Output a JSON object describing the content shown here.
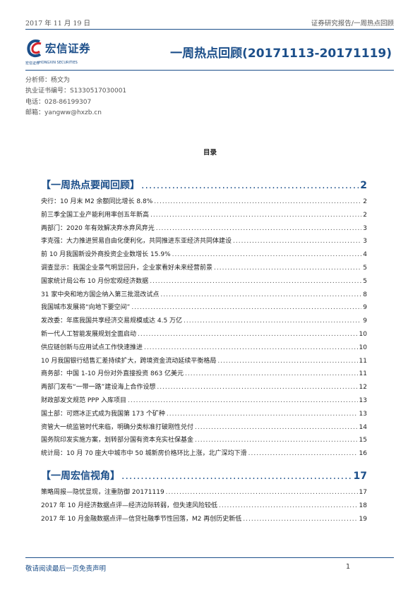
{
  "header": {
    "date": "2017 年 11 月 19 日",
    "report_type": "证券研究报告/一周热点回顾"
  },
  "logo": {
    "company_cn": "宏信证券",
    "company_en_prefix": "宏信证券",
    "company_en": "HONGXIN SECURITIES"
  },
  "title": "一周热点回顾(20171113-20171119)",
  "author": {
    "analyst": "分析师：杨文为",
    "license": "执业证书编号：S1330517030001",
    "phone": "电话：028-86199307",
    "email": "邮箱：yangww@hxzb.cn"
  },
  "toc_heading": "目录",
  "sections": [
    {
      "title": "【一周热点要闻回顾】",
      "page": "2"
    },
    {
      "title": "【一周宏信视角】",
      "page": "17"
    }
  ],
  "entries1": [
    {
      "title": "央行：10 月末 M2 余额同比增长 8.8%",
      "page": "2"
    },
    {
      "title": "前三季全国工业产能利用率创五年新高",
      "page": "2"
    },
    {
      "title": "两部门：2020 年有效解决弃水弃风弃光",
      "page": "3"
    },
    {
      "title": "李克强：大力推进贸易自由化便利化，共同推进东亚经济共同体建设",
      "page": "3"
    },
    {
      "title": "前 10 月我国新设外商投资企业数增长 15.9%",
      "page": "4"
    },
    {
      "title": "调查显示：我国企业景气明显回升，企业家看好未来经营前景",
      "page": "5"
    },
    {
      "title": "国家统计局公布 10 月份宏观经济数据",
      "page": "5"
    },
    {
      "title": "31 家中央和地方国企纳入第三批混改试点",
      "page": "8"
    },
    {
      "title": "我国城市发展将“向地下要空间”",
      "page": "9"
    },
    {
      "title": "发改委：年底我国共享经济交易规模或达 4.5 万亿",
      "page": "9"
    },
    {
      "title": "新一代人工智能发展规划全面启动",
      "page": "10"
    },
    {
      "title": "供应链创新与应用试点工作快速推进",
      "page": "10"
    },
    {
      "title": "10 月我国银行结售汇差持续扩大，跨境资金流动延续平衡格局",
      "page": "11"
    },
    {
      "title": "商务部：中国 1-10 月份对外直接投资 863 亿美元",
      "page": "11"
    },
    {
      "title": "两部门发布“一带一路”建设海上合作设想",
      "page": "12"
    },
    {
      "title": "财政部发文规范 PPP 入库项目",
      "page": "13"
    },
    {
      "title": "国土部：可燃冰正式成为我国第 173 个矿种",
      "page": "13"
    },
    {
      "title": "资管大一统监管时代来临，明确分类标准打破刚性兑付",
      "page": "14"
    },
    {
      "title": "国务院印发实施方案，划转部分国有资本充实社保基金",
      "page": "15"
    },
    {
      "title": "统计局：10 月 70 座大中城市中 50 城新房价格环比上涨，北广深均下滑",
      "page": "16"
    }
  ],
  "entries2": [
    {
      "title": "策略周报—隐忧显现，注重防御 20171119",
      "page": "17"
    },
    {
      "title": "2017 年 10 月经济数据点评—经济边际转弱，但失速风险较低",
      "page": "18"
    },
    {
      "title": "2017 年 10 月金融数据点评—信贷社融季节性回落，M2 再创历史新低",
      "page": "19"
    }
  ],
  "footer": {
    "disclaimer": "敬请阅读最后一页免责声明",
    "page": "1"
  },
  "colors": {
    "brand_blue": "#1c4f8a",
    "logo_red": "#d6262d"
  }
}
